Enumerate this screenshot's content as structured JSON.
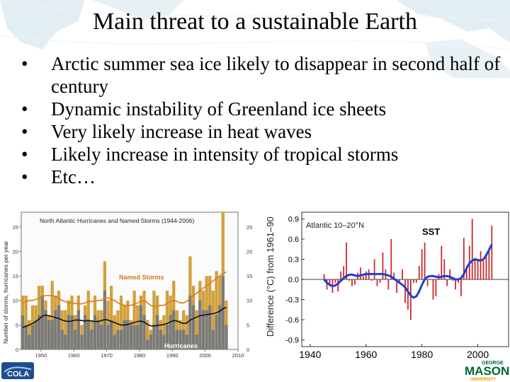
{
  "slide": {
    "title": "Main threat to a sustainable Earth",
    "bullets": [
      "Arctic summer sea ice likely to disappear in second half of century",
      "Dynamic instability of Greenland ice sheets",
      "Very likely increase in heat waves",
      "Likely increase in intensity of tropical storms",
      "Etc…"
    ],
    "bullet_glyph": "•"
  },
  "colors": {
    "named_storms": "#d2a03c",
    "hurricanes": "#7a7a7a",
    "anomaly_bar": "#c8282d",
    "smooth_line": "#1e3fd0",
    "storm_line": "#e07a1a"
  },
  "logos": {
    "left": "COLA",
    "right_top": "GEORGE",
    "right_main": "MASON",
    "right_bottom": "UNIVERSITY"
  },
  "chart_data": [
    {
      "type": "bar",
      "title": "North Atlantic Hurricanes and Named Storms (1944-2006)",
      "ylabel": "Number of storms, hurricanes per year",
      "xlim": [
        1944,
        2010
      ],
      "ylim": [
        0,
        28
      ],
      "x_ticks": [
        "1950",
        "1960",
        "1970",
        "1980",
        "1990",
        "2000",
        "2010"
      ],
      "y_ticks": [
        "0",
        "5",
        "10",
        "15",
        "20",
        "25"
      ],
      "annotations": [
        "Named Storms",
        "Hurricanes"
      ],
      "years": [
        1944,
        1945,
        1946,
        1947,
        1948,
        1949,
        1950,
        1951,
        1952,
        1953,
        1954,
        1955,
        1956,
        1957,
        1958,
        1959,
        1960,
        1961,
        1962,
        1963,
        1964,
        1965,
        1966,
        1967,
        1968,
        1969,
        1970,
        1971,
        1972,
        1973,
        1974,
        1975,
        1976,
        1977,
        1978,
        1979,
        1980,
        1981,
        1982,
        1983,
        1984,
        1985,
        1986,
        1987,
        1988,
        1989,
        1990,
        1991,
        1992,
        1993,
        1994,
        1995,
        1996,
        1997,
        1998,
        1999,
        2000,
        2001,
        2002,
        2003,
        2004,
        2005,
        2006
      ],
      "series": [
        {
          "name": "Named Storms",
          "values": [
            11,
            11,
            6,
            9,
            9,
            13,
            13,
            10,
            7,
            14,
            11,
            12,
            8,
            8,
            10,
            11,
            7,
            11,
            5,
            9,
            12,
            6,
            11,
            8,
            8,
            18,
            10,
            13,
            7,
            8,
            11,
            9,
            10,
            6,
            12,
            9,
            11,
            12,
            6,
            4,
            12,
            11,
            6,
            7,
            12,
            11,
            14,
            8,
            6,
            8,
            7,
            19,
            13,
            8,
            14,
            12,
            15,
            15,
            12,
            16,
            15,
            28,
            10
          ]
        },
        {
          "name": "Hurricanes",
          "values": [
            7,
            5,
            3,
            5,
            6,
            7,
            11,
            8,
            6,
            6,
            8,
            9,
            4,
            3,
            7,
            7,
            4,
            8,
            3,
            7,
            6,
            4,
            7,
            6,
            5,
            12,
            5,
            6,
            3,
            4,
            4,
            6,
            6,
            5,
            5,
            5,
            9,
            7,
            2,
            3,
            5,
            7,
            4,
            3,
            5,
            7,
            8,
            4,
            4,
            4,
            3,
            11,
            9,
            3,
            10,
            8,
            8,
            9,
            4,
            7,
            9,
            15,
            5
          ]
        },
        {
          "name": "Named Storms trend",
          "values": [
            9.5,
            9.8,
            10,
            10,
            10.2,
            10.5,
            10.8,
            11,
            11,
            11,
            10.8,
            10.5,
            10,
            9.8,
            9.5,
            9.5,
            9.4,
            9.3,
            9.3,
            9.5,
            9.8,
            9.8,
            9.8,
            10,
            10,
            10.5,
            10.5,
            10.2,
            10,
            9.5,
            9.2,
            9,
            9,
            9,
            9.2,
            9.5,
            9.8,
            10,
            9.5,
            9,
            8.8,
            8.8,
            9,
            9,
            9.5,
            9.8,
            10,
            9.8,
            9.5,
            9.5,
            9.8,
            10.5,
            11,
            11.5,
            12,
            12.5,
            13,
            13.5,
            14,
            14.5,
            15,
            15.5,
            15.8
          ]
        },
        {
          "name": "Hurricanes trend",
          "values": [
            4.5,
            4.7,
            5,
            5.3,
            5.7,
            6.2,
            6.8,
            7,
            6.9,
            6.7,
            6.5,
            6.3,
            6,
            5.8,
            5.7,
            5.8,
            6,
            6,
            5.9,
            5.8,
            5.9,
            5.8,
            5.7,
            5.7,
            5.9,
            6.1,
            6,
            5.7,
            5.5,
            5.2,
            5,
            5,
            5.1,
            5.3,
            5.5,
            5.7,
            5.8,
            5.6,
            5.1,
            4.8,
            4.8,
            4.9,
            5,
            5.1,
            5.3,
            5.6,
            5.9,
            5.8,
            5.5,
            5.3,
            5.4,
            6,
            6.3,
            6.6,
            6.9,
            7,
            7.1,
            7.2,
            7.3,
            7.5,
            7.8,
            8.3,
            8.6
          ]
        }
      ]
    },
    {
      "type": "bar",
      "title": "Atlantic 10–20°N",
      "label": "SST",
      "ylabel": "Difference (°C) from 1961–90",
      "xlim": [
        1937,
        2011
      ],
      "ylim": [
        -1.0,
        1.0
      ],
      "x_ticks": [
        "1940",
        "1960",
        "1980",
        "2000"
      ],
      "y_ticks": [
        "0.9",
        "0.6",
        "0.3",
        "0.0",
        "-0.3",
        "-0.6",
        "-0.9"
      ],
      "years": [
        1945,
        1946,
        1947,
        1948,
        1949,
        1950,
        1951,
        1952,
        1953,
        1954,
        1955,
        1956,
        1957,
        1958,
        1959,
        1960,
        1961,
        1962,
        1963,
        1964,
        1965,
        1966,
        1967,
        1968,
        1969,
        1970,
        1971,
        1972,
        1973,
        1974,
        1975,
        1976,
        1977,
        1978,
        1979,
        1980,
        1981,
        1982,
        1983,
        1984,
        1985,
        1986,
        1987,
        1988,
        1989,
        1990,
        1991,
        1992,
        1993,
        1994,
        1995,
        1996,
        1997,
        1998,
        1999,
        2000,
        2001,
        2002,
        2003,
        2004,
        2005
      ],
      "series": [
        {
          "name": "annual anomaly",
          "values": [
            0.08,
            -0.15,
            -0.1,
            -0.2,
            -0.05,
            -0.18,
            0.12,
            0.2,
            0.55,
            -0.02,
            -0.1,
            -0.08,
            0.1,
            0.18,
            0.05,
            0.12,
            0.15,
            -0.02,
            0.3,
            -0.1,
            -0.05,
            0.4,
            0.15,
            -0.15,
            0.6,
            0.1,
            -0.2,
            -0.05,
            0.15,
            -0.35,
            -0.45,
            -0.6,
            -0.05,
            -0.05,
            0.2,
            0.45,
            0.55,
            -0.1,
            0.0,
            -0.3,
            -0.25,
            0.08,
            0.5,
            0.3,
            -0.1,
            0.15,
            -0.02,
            -0.15,
            -0.05,
            -0.25,
            0.62,
            0.15,
            0.5,
            0.9,
            0.32,
            0.3,
            0.42,
            0.28,
            0.35,
            0.45,
            0.8
          ]
        },
        {
          "name": "smoothed",
          "values": [
            0.0,
            -0.05,
            -0.08,
            -0.1,
            -0.09,
            -0.06,
            -0.02,
            0.02,
            0.05,
            0.07,
            0.07,
            0.06,
            0.05,
            0.06,
            0.07,
            0.08,
            0.08,
            0.08,
            0.08,
            0.08,
            0.08,
            0.08,
            0.07,
            0.06,
            0.04,
            0.01,
            -0.02,
            -0.05,
            -0.08,
            -0.12,
            -0.18,
            -0.24,
            -0.27,
            -0.25,
            -0.18,
            -0.08,
            0.0,
            0.04,
            0.05,
            0.05,
            0.04,
            0.03,
            0.04,
            0.05,
            0.05,
            0.04,
            0.02,
            0.0,
            0.0,
            0.02,
            0.08,
            0.17,
            0.24,
            0.28,
            0.3,
            0.29,
            0.28,
            0.3,
            0.36,
            0.44,
            0.52
          ]
        }
      ]
    }
  ]
}
